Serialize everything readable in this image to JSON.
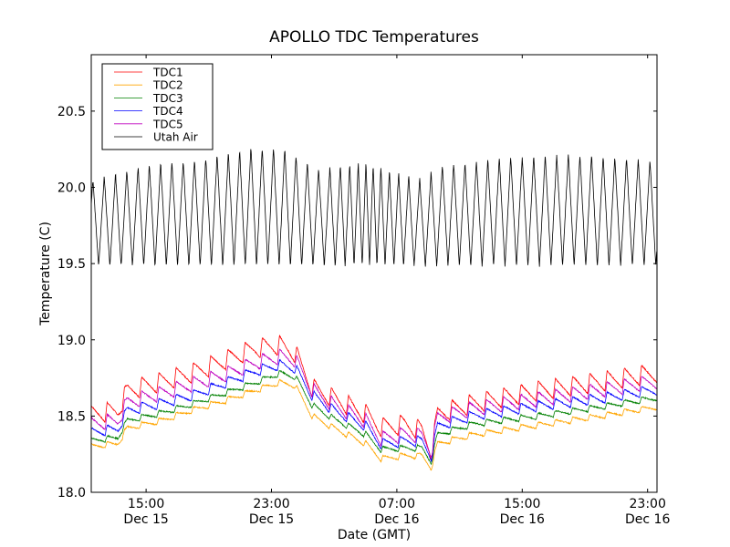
{
  "chart_data": {
    "type": "line",
    "title": "APOLLO TDC Temperatures",
    "xlabel": "Date (GMT)",
    "ylabel": "Temperature (C)",
    "x_unit": "hours since Dec 15 00:00 GMT",
    "xlim": [
      11.5,
      47.6
    ],
    "ylim": [
      18.0,
      20.87
    ],
    "grid": false,
    "legend_position": "top-left",
    "yticks": [
      {
        "value": 18.0,
        "label": "18.0"
      },
      {
        "value": 18.5,
        "label": "18.5"
      },
      {
        "value": 19.0,
        "label": "19.0"
      },
      {
        "value": 19.5,
        "label": "19.5"
      },
      {
        "value": 20.0,
        "label": "20.0"
      },
      {
        "value": 20.5,
        "label": "20.5"
      }
    ],
    "xticks": [
      {
        "value": 15,
        "time": "15:00",
        "date": "Dec 15"
      },
      {
        "value": 23,
        "time": "23:00",
        "date": "Dec 15"
      },
      {
        "value": 31,
        "time": "07:00",
        "date": "Dec 16"
      },
      {
        "value": 39,
        "time": "15:00",
        "date": "Dec 16"
      },
      {
        "value": 47,
        "time": "23:00",
        "date": "Dec 16"
      }
    ],
    "series": [
      {
        "name": "TDC1",
        "color": "#ff0000",
        "envelope": [
          [
            11.5,
            18.45
          ],
          [
            13.2,
            18.47
          ],
          [
            13.8,
            18.6
          ],
          [
            16,
            18.66
          ],
          [
            18,
            18.72
          ],
          [
            20,
            18.8
          ],
          [
            22,
            18.88
          ],
          [
            23.5,
            18.9
          ],
          [
            24.5,
            18.85
          ],
          [
            25.6,
            18.62
          ],
          [
            27,
            18.55
          ],
          [
            29,
            18.45
          ],
          [
            30,
            18.36
          ],
          [
            31.5,
            18.38
          ],
          [
            32.6,
            18.34
          ],
          [
            33.2,
            18.2
          ],
          [
            33.6,
            18.45
          ],
          [
            36,
            18.52
          ],
          [
            40,
            18.6
          ],
          [
            44,
            18.66
          ],
          [
            47.6,
            18.72
          ]
        ],
        "sawtooth_amplitude": 0.13,
        "period_hours": 1.1
      },
      {
        "name": "TDC2",
        "color": "#ffa500",
        "envelope": [
          [
            11.5,
            18.28
          ],
          [
            13.2,
            18.3
          ],
          [
            13.8,
            18.4
          ],
          [
            16,
            18.45
          ],
          [
            18,
            18.52
          ],
          [
            20,
            18.58
          ],
          [
            22,
            18.65
          ],
          [
            23.5,
            18.7
          ],
          [
            24.5,
            18.68
          ],
          [
            25.6,
            18.48
          ],
          [
            27,
            18.4
          ],
          [
            29,
            18.3
          ],
          [
            30,
            18.2
          ],
          [
            31.5,
            18.22
          ],
          [
            32.6,
            18.22
          ],
          [
            33.2,
            18.14
          ],
          [
            33.6,
            18.3
          ],
          [
            36,
            18.36
          ],
          [
            40,
            18.42
          ],
          [
            44,
            18.48
          ],
          [
            47.6,
            18.54
          ]
        ],
        "sawtooth_amplitude": 0.04,
        "period_hours": 1.1
      },
      {
        "name": "TDC3",
        "color": "#008000",
        "envelope": [
          [
            11.5,
            18.32
          ],
          [
            13.2,
            18.34
          ],
          [
            13.8,
            18.45
          ],
          [
            16,
            18.5
          ],
          [
            18,
            18.56
          ],
          [
            20,
            18.63
          ],
          [
            22,
            18.7
          ],
          [
            23.5,
            18.76
          ],
          [
            24.5,
            18.74
          ],
          [
            25.6,
            18.55
          ],
          [
            27,
            18.46
          ],
          [
            29,
            18.36
          ],
          [
            30,
            18.26
          ],
          [
            31.5,
            18.27
          ],
          [
            32.6,
            18.27
          ],
          [
            33.2,
            18.18
          ],
          [
            33.6,
            18.36
          ],
          [
            36,
            18.43
          ],
          [
            40,
            18.48
          ],
          [
            44,
            18.54
          ],
          [
            47.6,
            18.6
          ]
        ],
        "sawtooth_amplitude": 0.04,
        "period_hours": 1.1
      },
      {
        "name": "TDC4",
        "color": "#0000ff",
        "envelope": [
          [
            11.5,
            18.36
          ],
          [
            13.2,
            18.38
          ],
          [
            13.8,
            18.5
          ],
          [
            16,
            18.55
          ],
          [
            18,
            18.6
          ],
          [
            20,
            18.68
          ],
          [
            22,
            18.76
          ],
          [
            23.5,
            18.8
          ],
          [
            24.5,
            18.78
          ],
          [
            25.6,
            18.6
          ],
          [
            27,
            18.5
          ],
          [
            29,
            18.4
          ],
          [
            30,
            18.28
          ],
          [
            31.5,
            18.3
          ],
          [
            32.6,
            18.3
          ],
          [
            33.2,
            18.2
          ],
          [
            33.6,
            18.4
          ],
          [
            36,
            18.47
          ],
          [
            40,
            18.53
          ],
          [
            44,
            18.58
          ],
          [
            47.6,
            18.64
          ]
        ],
        "sawtooth_amplitude": 0.07,
        "period_hours": 1.1
      },
      {
        "name": "TDC5",
        "color": "#bf00bf",
        "envelope": [
          [
            11.5,
            18.4
          ],
          [
            13.2,
            18.42
          ],
          [
            13.8,
            18.54
          ],
          [
            16,
            18.6
          ],
          [
            18,
            18.66
          ],
          [
            20,
            18.72
          ],
          [
            22,
            18.8
          ],
          [
            23.5,
            18.84
          ],
          [
            24.5,
            18.82
          ],
          [
            25.6,
            18.62
          ],
          [
            27,
            18.52
          ],
          [
            29,
            18.42
          ],
          [
            30,
            18.3
          ],
          [
            31.5,
            18.33
          ],
          [
            32.6,
            18.32
          ],
          [
            33.2,
            18.22
          ],
          [
            33.6,
            18.44
          ],
          [
            36,
            18.5
          ],
          [
            40,
            18.56
          ],
          [
            44,
            18.62
          ],
          [
            47.6,
            18.68
          ]
        ],
        "sawtooth_amplitude": 0.1,
        "period_hours": 1.1
      },
      {
        "name": "Utah Air",
        "color": "#000000",
        "low": 19.48,
        "peaks": [
          [
            11.5,
            20.05
          ],
          [
            15,
            20.15
          ],
          [
            19,
            20.2
          ],
          [
            22,
            20.27
          ],
          [
            24,
            20.25
          ],
          [
            26,
            20.12
          ],
          [
            29,
            20.17
          ],
          [
            31,
            20.1
          ],
          [
            32.5,
            20.05
          ],
          [
            34,
            20.15
          ],
          [
            38,
            20.2
          ],
          [
            42,
            20.22
          ],
          [
            47.6,
            20.18
          ]
        ],
        "period_segments": [
          [
            11.5,
            0.72
          ],
          [
            26.5,
            0.72
          ],
          [
            29.2,
            0.45
          ],
          [
            32.3,
            0.72
          ],
          [
            47.6,
            0.75
          ]
        ]
      }
    ]
  }
}
